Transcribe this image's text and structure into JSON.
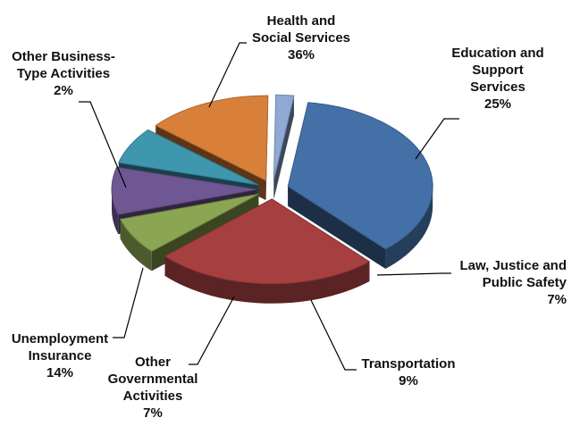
{
  "chart_data": {
    "type": "pie",
    "exploded": true,
    "style": "3d",
    "slices": [
      {
        "name": "Health and Social Services",
        "label_lines": [
          "Health and",
          "Social Services"
        ],
        "value_label": "36%",
        "value": 36,
        "color": "#4470A8"
      },
      {
        "name": "Education and Support Services",
        "label_lines": [
          "Education and",
          "Support",
          "Services"
        ],
        "value_label": "25%",
        "value": 25,
        "color": "#A64040"
      },
      {
        "name": "Law, Justice and Public Safety",
        "label_lines": [
          "Law, Justice and",
          "Public Safety"
        ],
        "value_label": "7%",
        "value": 7,
        "color": "#8BA552"
      },
      {
        "name": "Transportation",
        "label_lines": [
          "Transportation"
        ],
        "value_label": "9%",
        "value": 9,
        "color": "#6F5793"
      },
      {
        "name": "Other Governmental Activities",
        "label_lines": [
          "Other",
          "Governmental",
          "Activities"
        ],
        "value_label": "7%",
        "value": 7,
        "color": "#3F97AF"
      },
      {
        "name": "Unemployment Insurance",
        "label_lines": [
          "Unemployment",
          "Insurance"
        ],
        "value_label": "14%",
        "value": 14,
        "color": "#D8803A"
      },
      {
        "name": "Other Business-Type Activities",
        "label_lines": [
          "Other Business-",
          "Type Activities"
        ],
        "value_label": "2%",
        "value": 2,
        "color": "#8EA9D3"
      }
    ]
  }
}
